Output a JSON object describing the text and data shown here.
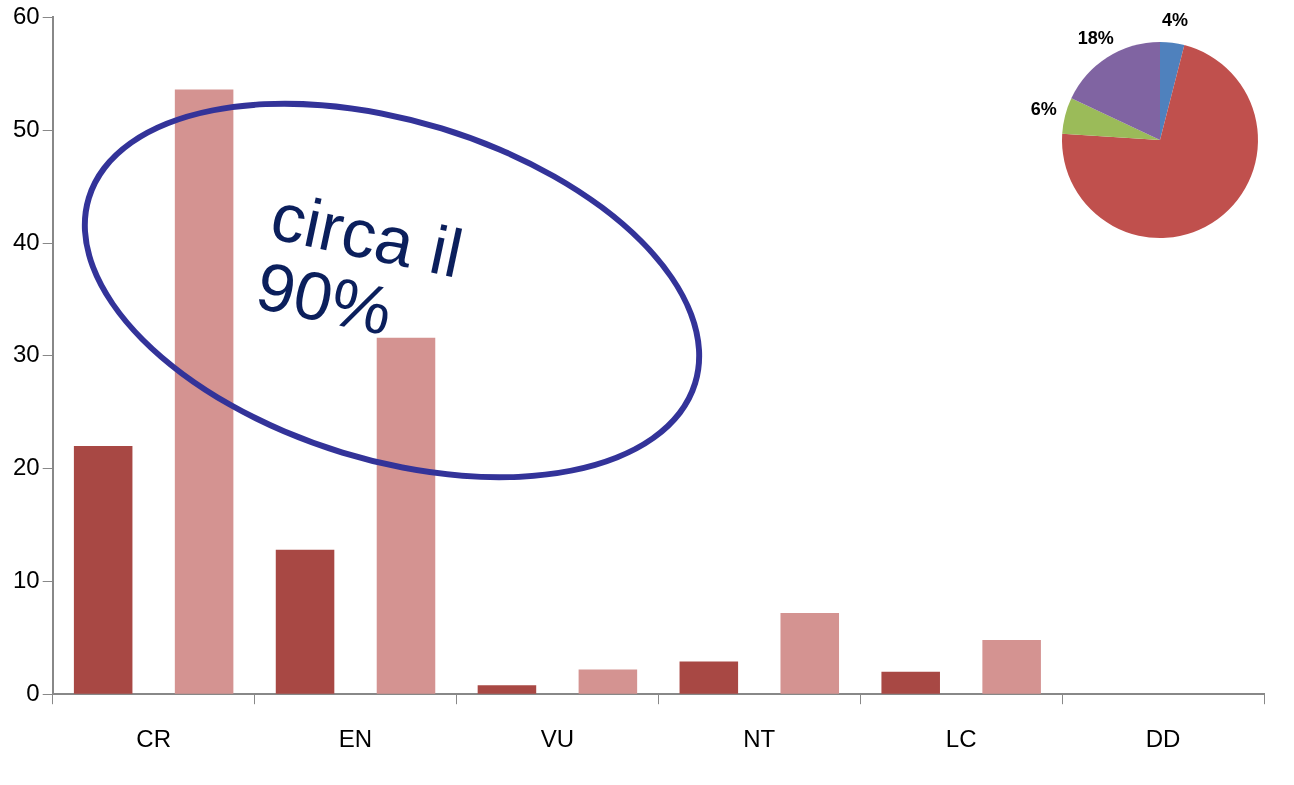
{
  "chart_data": [
    {
      "type": "bar",
      "categories": [
        "CR",
        "EN",
        "VU",
        "NT",
        "LC",
        "DD"
      ],
      "series": [
        {
          "color": "#a84844",
          "values": [
            22,
            12.8,
            0.8,
            2.9,
            2,
            0
          ]
        },
        {
          "color": "#d49391",
          "values": [
            53.6,
            31.6,
            2.2,
            7.2,
            4.8,
            0
          ]
        }
      ],
      "ylim": [
        0,
        60
      ],
      "yticks": [
        0,
        10,
        20,
        30,
        40,
        50,
        60
      ],
      "grid": false,
      "legend": false,
      "annotations": [
        "circa il 90%"
      ]
    },
    {
      "type": "pie",
      "categories": [
        null,
        null,
        null,
        null
      ],
      "values": [
        4,
        72,
        6,
        18
      ],
      "colors": [
        "#4f81bd",
        "#c0504d",
        "#9bbb59",
        "#8064a2"
      ],
      "value_labels": [
        "4%",
        null,
        "6%",
        "18%"
      ],
      "legend": false
    }
  ]
}
